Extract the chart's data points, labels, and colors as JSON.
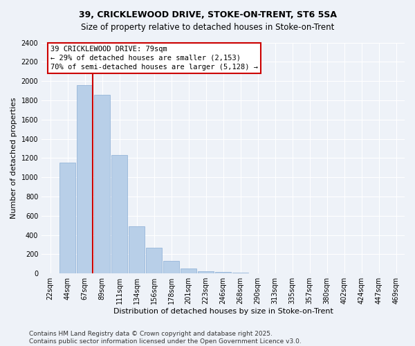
{
  "title": "39, CRICKLEWOOD DRIVE, STOKE-ON-TRENT, ST6 5SA",
  "subtitle": "Size of property relative to detached houses in Stoke-on-Trent",
  "xlabel": "Distribution of detached houses by size in Stoke-on-Trent",
  "ylabel": "Number of detached properties",
  "categories": [
    "22sqm",
    "44sqm",
    "67sqm",
    "89sqm",
    "111sqm",
    "134sqm",
    "156sqm",
    "178sqm",
    "201sqm",
    "223sqm",
    "246sqm",
    "268sqm",
    "290sqm",
    "313sqm",
    "335sqm",
    "357sqm",
    "380sqm",
    "402sqm",
    "424sqm",
    "447sqm",
    "469sqm"
  ],
  "values": [
    0,
    1150,
    1960,
    1860,
    1230,
    490,
    270,
    130,
    55,
    25,
    15,
    8,
    4,
    3,
    2,
    1,
    1,
    0,
    0,
    0,
    0
  ],
  "bar_color": "#b8cfe8",
  "bar_edgecolor": "#8aadd4",
  "vline_index": 2.45,
  "annotation_text": "39 CRICKLEWOOD DRIVE: 79sqm\n← 29% of detached houses are smaller (2,153)\n70% of semi-detached houses are larger (5,128) →",
  "annotation_box_color": "#ffffff",
  "annotation_box_edgecolor": "#cc0000",
  "vline_color": "#cc0000",
  "footer1": "Contains HM Land Registry data © Crown copyright and database right 2025.",
  "footer2": "Contains public sector information licensed under the Open Government Licence v3.0.",
  "background_color": "#eef2f8",
  "ylim": [
    0,
    2400
  ],
  "yticks": [
    0,
    200,
    400,
    600,
    800,
    1000,
    1200,
    1400,
    1600,
    1800,
    2000,
    2200,
    2400
  ],
  "title_fontsize": 9,
  "xlabel_fontsize": 8,
  "ylabel_fontsize": 8,
  "tick_fontsize": 7,
  "annotation_fontsize": 7.5,
  "footer_fontsize": 6.5
}
